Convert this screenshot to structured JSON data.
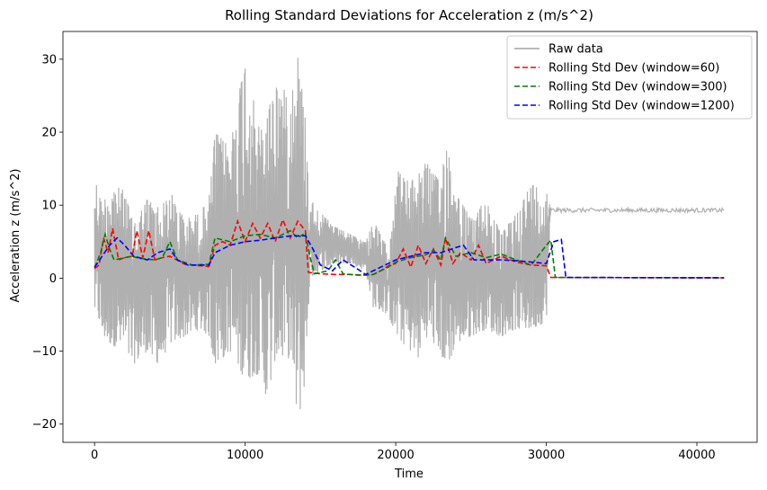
{
  "chart_data": {
    "type": "line",
    "title": "Rolling Standard Deviations for Acceleration z (m/s^2)",
    "xlabel": "Time",
    "ylabel": "Acceleration z (m/s^2)",
    "xlim": [
      -2100,
      44000
    ],
    "ylim": [
      -22.5,
      33.8
    ],
    "x_ticks": [
      0,
      10000,
      20000,
      30000,
      40000
    ],
    "y_ticks": [
      -20,
      -10,
      0,
      10,
      20,
      30
    ],
    "y_tick_labels": [
      "−20",
      "−10",
      "0",
      "10",
      "20",
      "30"
    ],
    "grid": false,
    "legend_position": "top-right",
    "series": [
      {
        "name": "Raw data",
        "color": "#b0b0b0",
        "style": "solid",
        "envelope": {
          "x": [
            0,
            300,
            500,
            1000,
            2000,
            2500,
            3000,
            3500,
            4000,
            4500,
            5000,
            6000,
            7000,
            7600,
            8000,
            9000,
            9500,
            10000,
            11000,
            11500,
            12000,
            13000,
            13500,
            14000,
            14300,
            15000,
            16000,
            17000,
            18000,
            18500,
            19500,
            20000,
            21000,
            21500,
            22000,
            23000,
            23300,
            24000,
            25000,
            26000,
            27000,
            28000,
            29000,
            30000,
            30300
          ],
          "upper": [
            14,
            12,
            10,
            13,
            12,
            8,
            9,
            11,
            10,
            10,
            12,
            8,
            9,
            11,
            20,
            18,
            25,
            30,
            20,
            23,
            27,
            25,
            31,
            22,
            11,
            9,
            7,
            6,
            5,
            8,
            4,
            15,
            13,
            15,
            16,
            13,
            20,
            12,
            8,
            11,
            6,
            9,
            13,
            12,
            10
          ],
          "lower": [
            -5,
            -6,
            -8,
            -9,
            -10,
            -12,
            -11,
            -10,
            -12,
            -11,
            -9,
            -8,
            -7,
            -8,
            -12,
            -10,
            -12,
            -14,
            -13,
            -17,
            -11,
            -11,
            -20,
            -14,
            0,
            1,
            2,
            2,
            1,
            -4,
            -5,
            -8,
            -10,
            -11,
            -8,
            -10,
            -13,
            -9,
            -8,
            -7,
            -8,
            -7,
            -7,
            -6,
            9
          ]
        },
        "constant_segment": {
          "x_start": 30300,
          "x_end": 41800,
          "value": 9.3
        }
      },
      {
        "name": "Rolling Std Dev (window=60)",
        "color": "#ff0000",
        "style": "dashed",
        "x": [
          0,
          300,
          600,
          900,
          1200,
          1600,
          2000,
          2500,
          2800,
          3200,
          3600,
          4000,
          4500,
          5000,
          6000,
          7000,
          7600,
          8000,
          8500,
          9000,
          9500,
          10000,
          10500,
          11000,
          11500,
          12000,
          12500,
          13000,
          13500,
          14000,
          14200,
          15000,
          16000,
          17000,
          18000,
          18500,
          19000,
          19600,
          20000,
          20500,
          21000,
          21500,
          22000,
          22500,
          23000,
          23300,
          23800,
          24300,
          25000,
          25500,
          26000,
          27000,
          28000,
          29000,
          30000,
          30300,
          41800
        ],
        "values": [
          1.3,
          1.8,
          5.5,
          3.5,
          6.8,
          2.5,
          2.8,
          3.0,
          6.5,
          2.8,
          6.5,
          2.5,
          2.8,
          3.0,
          1.9,
          1.7,
          1.6,
          4.5,
          5.0,
          4.5,
          7.8,
          5.0,
          7.5,
          5.5,
          7.5,
          5.0,
          8.0,
          5.5,
          7.8,
          6.5,
          0.8,
          0.6,
          0.5,
          0.5,
          0.4,
          0.5,
          1.0,
          1.8,
          2.0,
          4.0,
          1.5,
          4.5,
          2.0,
          4.0,
          1.8,
          5.5,
          2.0,
          3.5,
          2.5,
          4.5,
          2.0,
          3.0,
          2.2,
          1.8,
          1.7,
          0.1,
          0.05
        ]
      },
      {
        "name": "Rolling Std Dev (window=300)",
        "color": "#008000",
        "style": "dashed",
        "x": [
          0,
          400,
          700,
          1000,
          1300,
          2000,
          2500,
          3000,
          4000,
          4500,
          5000,
          5500,
          6500,
          7600,
          8000,
          9000,
          10000,
          11000,
          12000,
          13000,
          13500,
          14000,
          14300,
          14600,
          15500,
          16000,
          16500,
          17500,
          18500,
          19500,
          20000,
          21000,
          22000,
          22500,
          23000,
          23300,
          24000,
          25000,
          26000,
          27000,
          28000,
          29000,
          30000,
          30300,
          30600,
          41800
        ],
        "values": [
          1.4,
          3.5,
          6.0,
          4.0,
          2.5,
          2.8,
          3.0,
          2.7,
          2.5,
          2.8,
          5.0,
          2.5,
          1.8,
          1.9,
          5.5,
          5.0,
          5.8,
          6.0,
          5.5,
          6.5,
          5.5,
          6.2,
          3.0,
          0.6,
          1.0,
          2.5,
          0.6,
          0.4,
          0.5,
          1.5,
          2.2,
          2.8,
          3.2,
          3.8,
          2.5,
          5.5,
          3.0,
          3.5,
          2.8,
          3.3,
          2.5,
          1.8,
          4.5,
          5.2,
          0.1,
          0.05
        ]
      },
      {
        "name": "Rolling Std Dev (window=1200)",
        "color": "#0000ff",
        "style": "dashed",
        "x": [
          0,
          1000,
          1500,
          2000,
          2600,
          3500,
          4200,
          5000,
          5500,
          6200,
          7000,
          7600,
          8000,
          9000,
          10000,
          11000,
          12000,
          13000,
          14000,
          14500,
          15000,
          15800,
          16500,
          17500,
          18000,
          19000,
          20000,
          21000,
          22000,
          23000,
          24000,
          24500,
          25200,
          26000,
          27000,
          28000,
          29000,
          30000,
          30500,
          31000,
          31300,
          41800
        ],
        "values": [
          1.5,
          4.5,
          5.5,
          4.5,
          3.0,
          2.5,
          3.5,
          4.0,
          2.5,
          1.8,
          1.8,
          1.8,
          3.5,
          4.5,
          5.0,
          5.2,
          5.5,
          5.8,
          5.8,
          4.0,
          1.8,
          1.0,
          2.5,
          1.2,
          0.5,
          1.5,
          2.5,
          3.0,
          3.5,
          3.5,
          4.2,
          4.5,
          2.5,
          2.5,
          2.5,
          2.4,
          2.2,
          2.0,
          5.0,
          5.3,
          0.1,
          0.05
        ]
      }
    ]
  }
}
